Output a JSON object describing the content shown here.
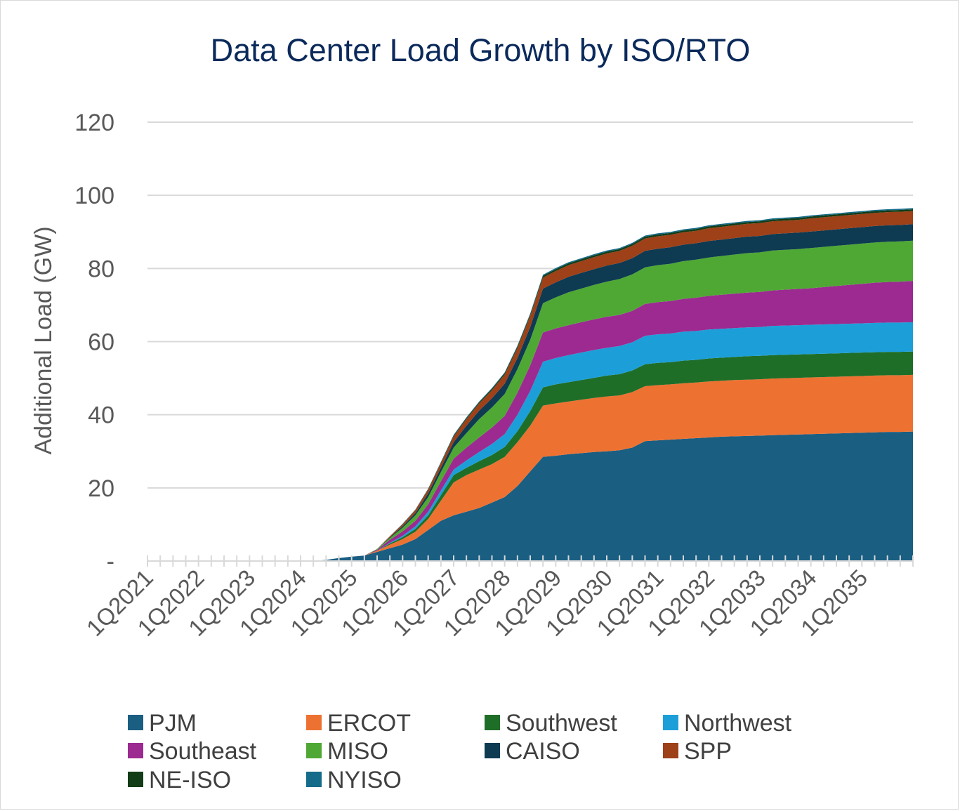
{
  "chart_data": {
    "type": "area",
    "stacked": true,
    "title": "Data Center Load Growth by ISO/RTO",
    "title_color": "#0b2a5b",
    "ylabel": "Additional Load (GW)",
    "xlabel": "",
    "ylim": [
      0,
      120
    ],
    "yticks": [
      0,
      20,
      40,
      60,
      80,
      100,
      120
    ],
    "ytick_labels": [
      "-",
      "20",
      "40",
      "60",
      "80",
      "100",
      "120"
    ],
    "grid": true,
    "legend_position": "bottom",
    "x_tick_labels": [
      "1Q2021",
      "1Q2022",
      "1Q2023",
      "1Q2024",
      "1Q2025",
      "1Q2026",
      "1Q2027",
      "1Q2028",
      "1Q2029",
      "1Q2030",
      "1Q2031",
      "1Q2032",
      "1Q2033",
      "1Q2034",
      "1Q2035"
    ],
    "x": [
      "1Q2021",
      "2Q2021",
      "3Q2021",
      "4Q2021",
      "1Q2022",
      "2Q2022",
      "3Q2022",
      "4Q2022",
      "1Q2023",
      "2Q2023",
      "3Q2023",
      "4Q2023",
      "1Q2024",
      "2Q2024",
      "3Q2024",
      "4Q2024",
      "1Q2025",
      "2Q2025",
      "3Q2025",
      "4Q2025",
      "1Q2026",
      "2Q2026",
      "3Q2026",
      "4Q2026",
      "1Q2027",
      "2Q2027",
      "3Q2027",
      "4Q2027",
      "1Q2028",
      "2Q2028",
      "3Q2028",
      "4Q2028",
      "1Q2029",
      "2Q2029",
      "3Q2029",
      "4Q2029",
      "1Q2030",
      "2Q2030",
      "3Q2030",
      "4Q2030",
      "1Q2031",
      "2Q2031",
      "3Q2031",
      "4Q2031",
      "1Q2032",
      "2Q2032",
      "3Q2032",
      "4Q2032",
      "1Q2033",
      "2Q2033",
      "3Q2033",
      "4Q2033",
      "1Q2034",
      "2Q2034",
      "3Q2034",
      "4Q2034",
      "1Q2035",
      "2Q2035",
      "3Q2035",
      "4Q2035"
    ],
    "series": [
      {
        "name": "PJM",
        "color": "#1a5e82",
        "values": [
          0,
          0,
          0,
          0,
          0,
          0,
          0,
          0,
          0,
          0,
          0,
          0,
          0,
          0.3,
          0.8,
          1.2,
          1.5,
          2.5,
          3.5,
          4.5,
          6,
          8.5,
          11,
          12.5,
          13.5,
          14.5,
          16,
          17.5,
          20.5,
          24.5,
          28.5,
          28.8,
          29.2,
          29.5,
          29.8,
          30,
          30.3,
          31,
          32.8,
          33,
          33.2,
          33.4,
          33.6,
          33.8,
          34,
          34.1,
          34.2,
          34.3,
          34.4,
          34.5,
          34.6,
          34.7,
          34.8,
          34.9,
          35,
          35.1,
          35.2,
          35.3,
          35.3,
          35.4
        ]
      },
      {
        "name": "ERCOT",
        "color": "#ed7232",
        "values": [
          0,
          0,
          0,
          0,
          0,
          0,
          0,
          0,
          0,
          0,
          0,
          0,
          0,
          0,
          0,
          0,
          0,
          0.3,
          1,
          1.5,
          2,
          3,
          5.5,
          9,
          10,
          10.5,
          10.5,
          11,
          12,
          12.5,
          14,
          14.3,
          14.4,
          14.6,
          14.8,
          15,
          15,
          15.2,
          15,
          15.1,
          15.1,
          15.2,
          15.2,
          15.3,
          15.3,
          15.4,
          15.4,
          15.4,
          15.5,
          15.5,
          15.5,
          15.5,
          15.5,
          15.5,
          15.5,
          15.5,
          15.5,
          15.5,
          15.5,
          15.5
        ]
      },
      {
        "name": "Southwest",
        "color": "#1f6e28",
        "values": [
          0,
          0,
          0,
          0,
          0,
          0,
          0,
          0,
          0,
          0,
          0,
          0,
          0,
          0,
          0,
          0,
          0,
          0,
          0.3,
          0.5,
          0.8,
          1,
          1.5,
          2,
          2,
          2.3,
          2.5,
          2.7,
          3,
          4,
          5,
          5.2,
          5.3,
          5.4,
          5.5,
          5.7,
          5.8,
          5.9,
          6,
          6.1,
          6.1,
          6.2,
          6.2,
          6.3,
          6.3,
          6.3,
          6.4,
          6.4,
          6.4,
          6.4,
          6.4,
          6.4,
          6.4,
          6.4,
          6.4,
          6.4,
          6.4,
          6.4,
          6.4,
          6.4
        ]
      },
      {
        "name": "Northwest",
        "color": "#1c9fd8",
        "values": [
          0,
          0,
          0,
          0,
          0,
          0,
          0,
          0,
          0,
          0,
          0,
          0,
          0,
          0,
          0,
          0,
          0,
          0,
          0.2,
          0.4,
          0.7,
          1,
          1.3,
          1.5,
          2,
          2.5,
          3,
          3.5,
          4.5,
          5.5,
          7,
          7.2,
          7.4,
          7.5,
          7.6,
          7.6,
          7.7,
          7.7,
          7.8,
          7.8,
          7.8,
          7.9,
          7.9,
          7.9,
          7.9,
          7.9,
          7.9,
          7.9,
          8,
          8,
          8,
          8,
          8,
          8,
          8,
          8,
          8,
          8,
          8,
          8
        ]
      },
      {
        "name": "Southeast",
        "color": "#9c2a91",
        "values": [
          0,
          0,
          0,
          0,
          0,
          0,
          0,
          0,
          0,
          0,
          0,
          0,
          0,
          0,
          0,
          0,
          0,
          0.3,
          0.8,
          1.2,
          1.5,
          2,
          2.5,
          3,
          3.5,
          4,
          4.5,
          5,
          6,
          7,
          8,
          8.1,
          8.2,
          8.3,
          8.4,
          8.5,
          8.5,
          8.6,
          8.7,
          8.8,
          8.9,
          9,
          9.1,
          9.2,
          9.3,
          9.4,
          9.5,
          9.6,
          9.7,
          9.8,
          9.9,
          10,
          10.2,
          10.4,
          10.6,
          10.8,
          11,
          11.1,
          11.2,
          11.3
        ]
      },
      {
        "name": "MISO",
        "color": "#4fa834",
        "values": [
          0,
          0,
          0,
          0,
          0,
          0,
          0,
          0,
          0,
          0,
          0,
          0,
          0,
          0,
          0,
          0,
          0,
          0.2,
          0.5,
          1,
          1.5,
          2,
          2.5,
          3,
          4,
          5,
          5.5,
          6,
          6.5,
          7,
          8,
          8.5,
          9,
          9.2,
          9.4,
          9.6,
          9.8,
          10,
          10,
          10.1,
          10.2,
          10.3,
          10.4,
          10.5,
          10.6,
          10.7,
          10.8,
          10.8,
          10.9,
          10.9,
          10.9,
          11,
          11,
          11,
          11,
          11,
          11,
          11,
          11,
          11
        ]
      },
      {
        "name": "CAISO",
        "color": "#0e3a52",
        "values": [
          0,
          0,
          0,
          0,
          0,
          0,
          0,
          0,
          0,
          0,
          0,
          0,
          0,
          0,
          0,
          0,
          0,
          0,
          0.2,
          0.4,
          0.6,
          1,
          1.2,
          1.5,
          2,
          2.3,
          2.5,
          2.8,
          3,
          3.5,
          4,
          4.1,
          4.2,
          4.3,
          4.3,
          4.4,
          4.4,
          4.4,
          4.5,
          4.5,
          4.5,
          4.5,
          4.5,
          4.5,
          4.5,
          4.5,
          4.5,
          4.5,
          4.5,
          4.5,
          4.5,
          4.5,
          4.5,
          4.5,
          4.5,
          4.5,
          4.5,
          4.5,
          4.5,
          4.5
        ]
      },
      {
        "name": "SPP",
        "color": "#9e4018",
        "values": [
          0,
          0,
          0,
          0,
          0,
          0,
          0,
          0,
          0,
          0,
          0,
          0,
          0,
          0,
          0,
          0,
          0,
          0,
          0.3,
          0.5,
          0.8,
          1,
          1.2,
          1.5,
          1.8,
          2,
          2.2,
          2.5,
          2.7,
          3,
          3,
          3.1,
          3.2,
          3.2,
          3.3,
          3.3,
          3.3,
          3.4,
          3.4,
          3.4,
          3.4,
          3.4,
          3.4,
          3.5,
          3.5,
          3.5,
          3.5,
          3.5,
          3.5,
          3.5,
          3.5,
          3.6,
          3.6,
          3.6,
          3.6,
          3.6,
          3.6,
          3.6,
          3.6,
          3.6
        ]
      },
      {
        "name": "NE-ISO",
        "color": "#123d17",
        "values": [
          0,
          0,
          0,
          0,
          0,
          0,
          0,
          0,
          0,
          0,
          0,
          0,
          0,
          0,
          0,
          0,
          0,
          0,
          0,
          0.1,
          0.1,
          0.2,
          0.2,
          0.3,
          0.3,
          0.3,
          0.4,
          0.4,
          0.4,
          0.4,
          0.5,
          0.5,
          0.5,
          0.5,
          0.5,
          0.5,
          0.5,
          0.5,
          0.5,
          0.5,
          0.5,
          0.5,
          0.5,
          0.5,
          0.5,
          0.5,
          0.5,
          0.5,
          0.5,
          0.5,
          0.5,
          0.5,
          0.5,
          0.5,
          0.5,
          0.5,
          0.5,
          0.5,
          0.5,
          0.5
        ]
      },
      {
        "name": "NYISO",
        "color": "#146b8a",
        "values": [
          0,
          0,
          0,
          0,
          0,
          0,
          0,
          0,
          0,
          0,
          0,
          0,
          0,
          0,
          0,
          0,
          0,
          0,
          0,
          0.1,
          0.1,
          0.1,
          0.2,
          0.2,
          0.2,
          0.2,
          0.2,
          0.2,
          0.3,
          0.3,
          0.3,
          0.3,
          0.3,
          0.3,
          0.3,
          0.3,
          0.3,
          0.3,
          0.3,
          0.3,
          0.3,
          0.3,
          0.3,
          0.3,
          0.3,
          0.3,
          0.3,
          0.3,
          0.3,
          0.3,
          0.3,
          0.3,
          0.3,
          0.3,
          0.3,
          0.3,
          0.3,
          0.3,
          0.3,
          0.3
        ]
      }
    ]
  }
}
